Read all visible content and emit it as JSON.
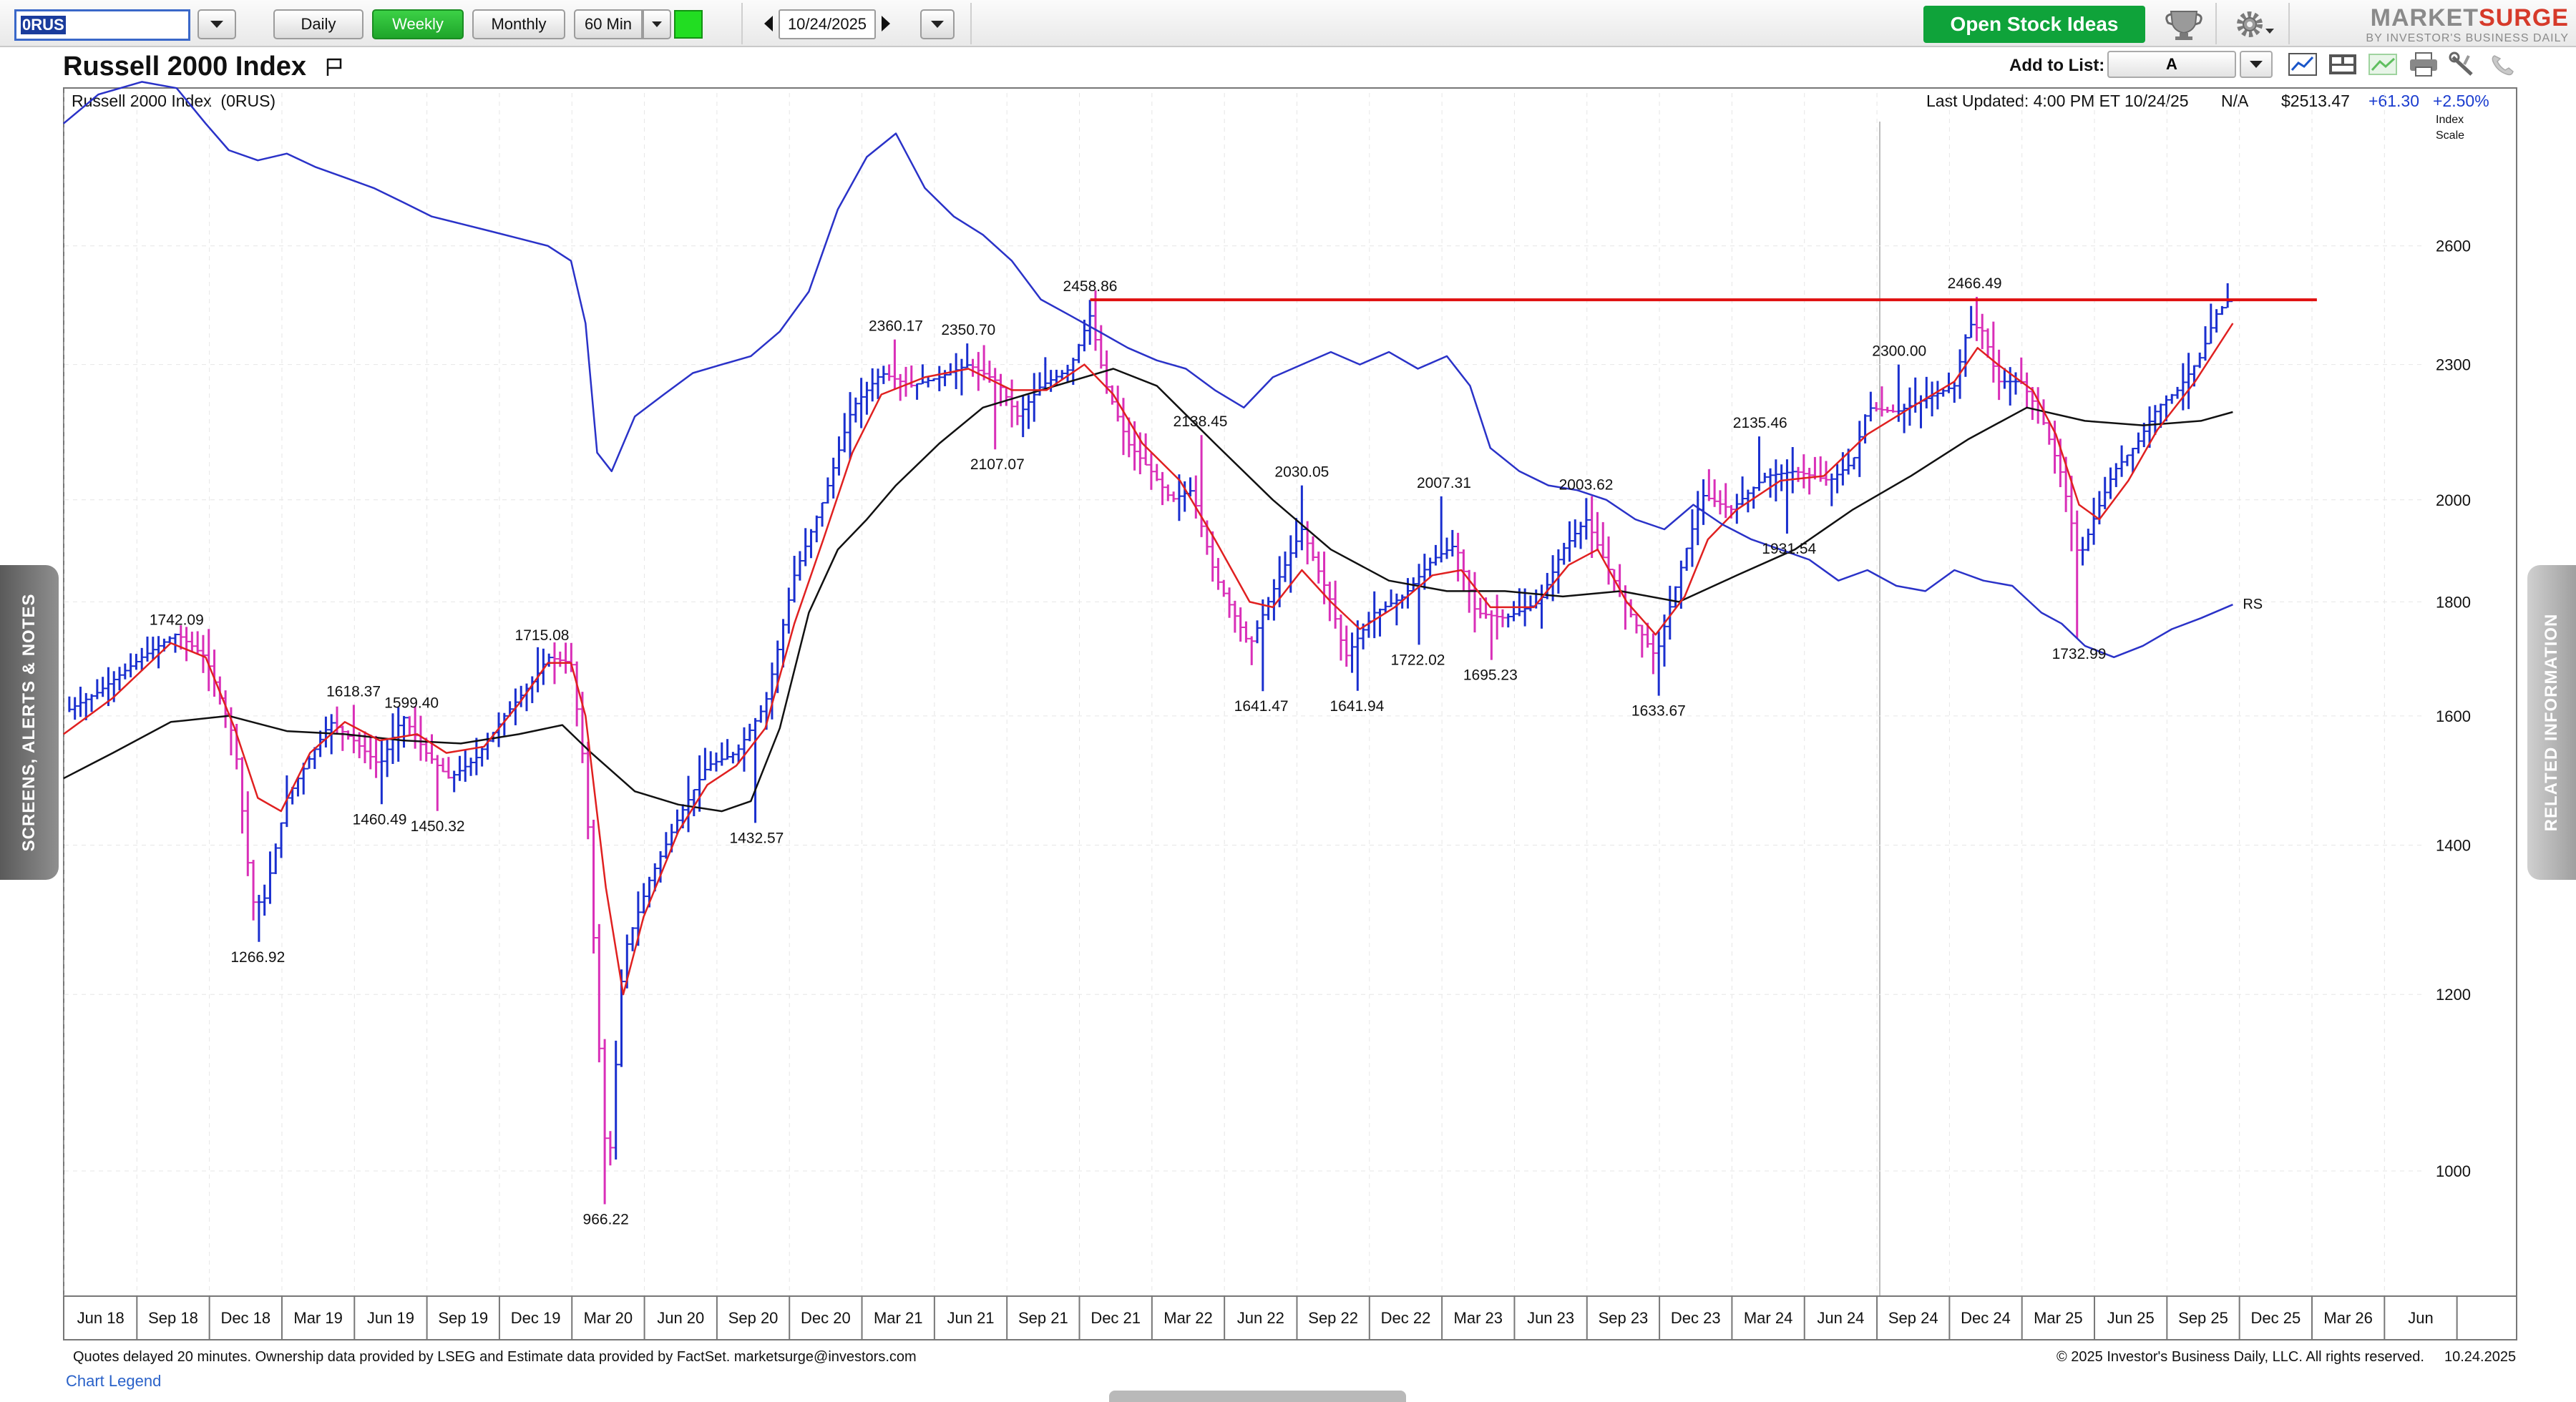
{
  "toolbar": {
    "symbol": "0RUS",
    "periods": [
      "Daily",
      "Weekly",
      "Monthly"
    ],
    "active_period": "Weekly",
    "interval": "60 Min",
    "date": "10/24/2025",
    "open_ideas": "Open Stock Ideas",
    "logo_market": "MARKET",
    "logo_surge": "SURGE",
    "logo_tag": "BY INVESTOR'S BUSINESS DAILY"
  },
  "header": {
    "title": "Russell 2000 Index",
    "add_to_list": "Add to List:",
    "list_value": "A"
  },
  "chart_info": {
    "name": "Russell 2000 Index",
    "symbol": "(0RUS)",
    "last_updated": "Last Updated: 4:00 PM ET 10/24/25",
    "na": "N/A",
    "price": "$2513.47",
    "change": "+61.30",
    "change_pct": "+2.50%",
    "scale_label_1": "Index",
    "scale_label_2": "Scale",
    "rs_label": "RS"
  },
  "side": {
    "left": "SCREENS, ALERTS & NOTES",
    "right": "RELATED INFORMATION"
  },
  "footer": {
    "disclaimer": "Quotes delayed 20 minutes. Ownership data provided by LSEG and Estimate data provided by FactSet. marketsurge@investors.com",
    "copyright": "© 2025 Investor's Business Daily, LLC. All rights reserved.",
    "date": "10.24.2025",
    "legend": "Chart Legend"
  },
  "colors": {
    "up_bar": "#1a2fcf",
    "down_bar": "#d92fb8",
    "ma_short": "#e02020",
    "ma_long": "#111111",
    "rs_line": "#2a32c8",
    "resistance": "#e01010",
    "accent_green": "#1ea52a"
  },
  "chart_data": {
    "type": "ohlc",
    "scale": "log",
    "ylim": [
      880,
      3000
    ],
    "y_ticks": [
      1000,
      1200,
      1400,
      1600,
      1800,
      2000,
      2300,
      2600
    ],
    "x_range": [
      2018.333,
      2026.5
    ],
    "x_ticks": [
      "Jun 18",
      "Sep 18",
      "Dec 18",
      "Mar 19",
      "Jun 19",
      "Sep 19",
      "Dec 19",
      "Mar 20",
      "Jun 20",
      "Sep 20",
      "Dec 20",
      "Mar 21",
      "Jun 21",
      "Sep 21",
      "Dec 21",
      "Mar 22",
      "Jun 22",
      "Sep 22",
      "Dec 22",
      "Mar 23",
      "Jun 23",
      "Sep 23",
      "Dec 23",
      "Mar 24",
      "Jun 24",
      "Sep 24",
      "Dec 24",
      "Mar 25",
      "Jun 25",
      "Sep 25",
      "Dec 25",
      "Mar 26",
      "Jun"
    ],
    "price_path": [
      [
        2018.33,
        1605
      ],
      [
        2018.45,
        1640
      ],
      [
        2018.6,
        1700
      ],
      [
        2018.72,
        1742
      ],
      [
        2018.82,
        1700
      ],
      [
        2018.92,
        1560
      ],
      [
        2018.98,
        1320
      ],
      [
        2019.02,
        1320
      ],
      [
        2019.1,
        1470
      ],
      [
        2019.25,
        1590
      ],
      [
        2019.33,
        1560
      ],
      [
        2019.42,
        1520
      ],
      [
        2019.5,
        1600
      ],
      [
        2019.58,
        1540
      ],
      [
        2019.66,
        1500
      ],
      [
        2019.75,
        1530
      ],
      [
        2019.85,
        1600
      ],
      [
        2019.95,
        1660
      ],
      [
        2020.0,
        1700
      ],
      [
        2020.08,
        1690
      ],
      [
        2020.13,
        1500
      ],
      [
        2020.19,
        1050
      ],
      [
        2020.21,
        1000
      ],
      [
        2020.26,
        1250
      ],
      [
        2020.35,
        1350
      ],
      [
        2020.45,
        1440
      ],
      [
        2020.55,
        1520
      ],
      [
        2020.65,
        1540
      ],
      [
        2020.75,
        1620
      ],
      [
        2020.85,
        1850
      ],
      [
        2020.95,
        2000
      ],
      [
        2021.05,
        2200
      ],
      [
        2021.15,
        2280
      ],
      [
        2021.25,
        2250
      ],
      [
        2021.35,
        2270
      ],
      [
        2021.45,
        2300
      ],
      [
        2021.55,
        2260
      ],
      [
        2021.62,
        2180
      ],
      [
        2021.7,
        2250
      ],
      [
        2021.8,
        2290
      ],
      [
        2021.87,
        2420
      ],
      [
        2021.92,
        2260
      ],
      [
        2022.0,
        2120
      ],
      [
        2022.08,
        2060
      ],
      [
        2022.15,
        2000
      ],
      [
        2022.22,
        2020
      ],
      [
        2022.3,
        1850
      ],
      [
        2022.42,
        1720
      ],
      [
        2022.5,
        1820
      ],
      [
        2022.6,
        1940
      ],
      [
        2022.7,
        1800
      ],
      [
        2022.75,
        1700
      ],
      [
        2022.85,
        1780
      ],
      [
        2022.95,
        1810
      ],
      [
        2023.05,
        1880
      ],
      [
        2023.13,
        1910
      ],
      [
        2023.2,
        1780
      ],
      [
        2023.3,
        1770
      ],
      [
        2023.42,
        1800
      ],
      [
        2023.5,
        1900
      ],
      [
        2023.58,
        1960
      ],
      [
        2023.65,
        1870
      ],
      [
        2023.75,
        1760
      ],
      [
        2023.82,
        1700
      ],
      [
        2023.9,
        1850
      ],
      [
        2023.98,
        2010
      ],
      [
        2024.08,
        1980
      ],
      [
        2024.2,
        2050
      ],
      [
        2024.3,
        2060
      ],
      [
        2024.42,
        2040
      ],
      [
        2024.5,
        2080
      ],
      [
        2024.55,
        2200
      ],
      [
        2024.65,
        2190
      ],
      [
        2024.75,
        2220
      ],
      [
        2024.85,
        2250
      ],
      [
        2024.9,
        2400
      ],
      [
        2024.95,
        2380
      ],
      [
        2025.0,
        2260
      ],
      [
        2025.08,
        2260
      ],
      [
        2025.15,
        2180
      ],
      [
        2025.22,
        2050
      ],
      [
        2025.28,
        1880
      ],
      [
        2025.33,
        1960
      ],
      [
        2025.4,
        2060
      ],
      [
        2025.48,
        2120
      ],
      [
        2025.55,
        2200
      ],
      [
        2025.62,
        2240
      ],
      [
        2025.7,
        2320
      ],
      [
        2025.75,
        2420
      ],
      [
        2025.81,
        2470
      ]
    ],
    "rs_path": [
      [
        2018.33,
        2950
      ],
      [
        2018.45,
        3040
      ],
      [
        2018.6,
        3080
      ],
      [
        2018.72,
        3060
      ],
      [
        2018.82,
        2950
      ],
      [
        2018.9,
        2870
      ],
      [
        2019.0,
        2840
      ],
      [
        2019.1,
        2860
      ],
      [
        2019.2,
        2820
      ],
      [
        2019.3,
        2790
      ],
      [
        2019.4,
        2760
      ],
      [
        2019.5,
        2720
      ],
      [
        2019.6,
        2680
      ],
      [
        2019.7,
        2660
      ],
      [
        2019.8,
        2640
      ],
      [
        2019.9,
        2620
      ],
      [
        2020.0,
        2600
      ],
      [
        2020.08,
        2560
      ],
      [
        2020.13,
        2400
      ],
      [
        2020.17,
        2100
      ],
      [
        2020.22,
        2060
      ],
      [
        2020.3,
        2180
      ],
      [
        2020.4,
        2230
      ],
      [
        2020.5,
        2280
      ],
      [
        2020.6,
        2300
      ],
      [
        2020.7,
        2320
      ],
      [
        2020.8,
        2380
      ],
      [
        2020.9,
        2480
      ],
      [
        2021.0,
        2700
      ],
      [
        2021.1,
        2850
      ],
      [
        2021.2,
        2920
      ],
      [
        2021.3,
        2760
      ],
      [
        2021.4,
        2680
      ],
      [
        2021.5,
        2630
      ],
      [
        2021.6,
        2560
      ],
      [
        2021.7,
        2460
      ],
      [
        2021.8,
        2420
      ],
      [
        2021.9,
        2380
      ],
      [
        2022.0,
        2340
      ],
      [
        2022.1,
        2310
      ],
      [
        2022.2,
        2290
      ],
      [
        2022.3,
        2240
      ],
      [
        2022.4,
        2200
      ],
      [
        2022.5,
        2270
      ],
      [
        2022.6,
        2300
      ],
      [
        2022.7,
        2330
      ],
      [
        2022.8,
        2300
      ],
      [
        2022.9,
        2330
      ],
      [
        2023.0,
        2290
      ],
      [
        2023.1,
        2320
      ],
      [
        2023.18,
        2250
      ],
      [
        2023.25,
        2110
      ],
      [
        2023.35,
        2060
      ],
      [
        2023.45,
        2030
      ],
      [
        2023.55,
        2020
      ],
      [
        2023.65,
        2000
      ],
      [
        2023.75,
        1960
      ],
      [
        2023.85,
        1940
      ],
      [
        2023.95,
        1990
      ],
      [
        2024.05,
        1950
      ],
      [
        2024.15,
        1920
      ],
      [
        2024.25,
        1900
      ],
      [
        2024.35,
        1880
      ],
      [
        2024.45,
        1840
      ],
      [
        2024.55,
        1860
      ],
      [
        2024.65,
        1830
      ],
      [
        2024.75,
        1820
      ],
      [
        2024.85,
        1860
      ],
      [
        2024.95,
        1840
      ],
      [
        2025.05,
        1830
      ],
      [
        2025.15,
        1780
      ],
      [
        2025.22,
        1760
      ],
      [
        2025.3,
        1720
      ],
      [
        2025.4,
        1700
      ],
      [
        2025.5,
        1720
      ],
      [
        2025.6,
        1750
      ],
      [
        2025.7,
        1770
      ],
      [
        2025.81,
        1795
      ]
    ],
    "ma_short_path": [
      [
        2018.33,
        1570
      ],
      [
        2018.5,
        1630
      ],
      [
        2018.7,
        1725
      ],
      [
        2018.82,
        1700
      ],
      [
        2018.92,
        1580
      ],
      [
        2019.0,
        1470
      ],
      [
        2019.08,
        1450
      ],
      [
        2019.18,
        1540
      ],
      [
        2019.3,
        1590
      ],
      [
        2019.42,
        1560
      ],
      [
        2019.55,
        1570
      ],
      [
        2019.65,
        1540
      ],
      [
        2019.78,
        1550
      ],
      [
        2019.9,
        1620
      ],
      [
        2020.0,
        1690
      ],
      [
        2020.08,
        1690
      ],
      [
        2020.13,
        1600
      ],
      [
        2020.2,
        1340
      ],
      [
        2020.26,
        1200
      ],
      [
        2020.33,
        1300
      ],
      [
        2020.45,
        1420
      ],
      [
        2020.55,
        1490
      ],
      [
        2020.65,
        1520
      ],
      [
        2020.75,
        1580
      ],
      [
        2020.85,
        1760
      ],
      [
        2020.95,
        1920
      ],
      [
        2021.05,
        2100
      ],
      [
        2021.15,
        2230
      ],
      [
        2021.3,
        2270
      ],
      [
        2021.45,
        2290
      ],
      [
        2021.6,
        2240
      ],
      [
        2021.72,
        2240
      ],
      [
        2021.85,
        2300
      ],
      [
        2021.95,
        2230
      ],
      [
        2022.05,
        2120
      ],
      [
        2022.18,
        2040
      ],
      [
        2022.3,
        1920
      ],
      [
        2022.42,
        1800
      ],
      [
        2022.5,
        1790
      ],
      [
        2022.6,
        1860
      ],
      [
        2022.7,
        1800
      ],
      [
        2022.8,
        1750
      ],
      [
        2022.92,
        1790
      ],
      [
        2023.05,
        1850
      ],
      [
        2023.15,
        1860
      ],
      [
        2023.25,
        1790
      ],
      [
        2023.4,
        1790
      ],
      [
        2023.52,
        1870
      ],
      [
        2023.62,
        1900
      ],
      [
        2023.72,
        1800
      ],
      [
        2023.82,
        1740
      ],
      [
        2023.92,
        1810
      ],
      [
        2024.0,
        1920
      ],
      [
        2024.1,
        1980
      ],
      [
        2024.25,
        2040
      ],
      [
        2024.4,
        2050
      ],
      [
        2024.55,
        2140
      ],
      [
        2024.7,
        2200
      ],
      [
        2024.85,
        2260
      ],
      [
        2024.93,
        2340
      ],
      [
        2025.0,
        2300
      ],
      [
        2025.12,
        2240
      ],
      [
        2025.2,
        2140
      ],
      [
        2025.28,
        1990
      ],
      [
        2025.35,
        1960
      ],
      [
        2025.45,
        2040
      ],
      [
        2025.55,
        2150
      ],
      [
        2025.68,
        2260
      ],
      [
        2025.81,
        2400
      ]
    ],
    "ma_long_path": [
      [
        2018.33,
        1500
      ],
      [
        2018.5,
        1540
      ],
      [
        2018.7,
        1590
      ],
      [
        2018.9,
        1600
      ],
      [
        2019.1,
        1575
      ],
      [
        2019.3,
        1570
      ],
      [
        2019.5,
        1560
      ],
      [
        2019.7,
        1555
      ],
      [
        2019.9,
        1570
      ],
      [
        2020.05,
        1585
      ],
      [
        2020.15,
        1540
      ],
      [
        2020.3,
        1480
      ],
      [
        2020.45,
        1460
      ],
      [
        2020.6,
        1450
      ],
      [
        2020.7,
        1465
      ],
      [
        2020.8,
        1580
      ],
      [
        2020.9,
        1780
      ],
      [
        2021.0,
        1900
      ],
      [
        2021.1,
        1960
      ],
      [
        2021.2,
        2030
      ],
      [
        2021.35,
        2120
      ],
      [
        2021.5,
        2200
      ],
      [
        2021.65,
        2230
      ],
      [
        2021.8,
        2260
      ],
      [
        2021.95,
        2290
      ],
      [
        2022.1,
        2250
      ],
      [
        2022.3,
        2120
      ],
      [
        2022.5,
        2000
      ],
      [
        2022.7,
        1900
      ],
      [
        2022.9,
        1840
      ],
      [
        2023.1,
        1820
      ],
      [
        2023.3,
        1820
      ],
      [
        2023.5,
        1810
      ],
      [
        2023.7,
        1820
      ],
      [
        2023.9,
        1800
      ],
      [
        2024.1,
        1850
      ],
      [
        2024.3,
        1900
      ],
      [
        2024.5,
        1980
      ],
      [
        2024.7,
        2050
      ],
      [
        2024.9,
        2130
      ],
      [
        2025.1,
        2200
      ],
      [
        2025.3,
        2170
      ],
      [
        2025.5,
        2160
      ],
      [
        2025.7,
        2170
      ],
      [
        2025.81,
        2190
      ]
    ],
    "resistance": {
      "x_start": 2021.87,
      "x_end": 2026.1,
      "y": 2459
    },
    "annotations": [
      {
        "x": 2018.72,
        "y": 1742.09,
        "label": "1742.09",
        "pos": "above"
      },
      {
        "x": 2019.0,
        "y": 1266.92,
        "label": "1266.92",
        "pos": "below"
      },
      {
        "x": 2019.33,
        "y": 1618.37,
        "label": "1618.37",
        "pos": "above"
      },
      {
        "x": 2019.42,
        "y": 1460.49,
        "label": "1460.49",
        "pos": "below"
      },
      {
        "x": 2019.53,
        "y": 1599.4,
        "label": "1599.40",
        "pos": "above"
      },
      {
        "x": 2019.62,
        "y": 1450.32,
        "label": "1450.32",
        "pos": "below"
      },
      {
        "x": 2019.98,
        "y": 1715.08,
        "label": "1715.08",
        "pos": "above"
      },
      {
        "x": 2020.2,
        "y": 966.22,
        "label": "966.22",
        "pos": "below"
      },
      {
        "x": 2020.72,
        "y": 1432.57,
        "label": "1432.57",
        "pos": "below"
      },
      {
        "x": 2021.2,
        "y": 2360.17,
        "label": "2360.17",
        "pos": "above"
      },
      {
        "x": 2021.45,
        "y": 2350.7,
        "label": "2350.70",
        "pos": "above"
      },
      {
        "x": 2021.55,
        "y": 2107.07,
        "label": "2107.07",
        "pos": "below"
      },
      {
        "x": 2021.87,
        "y": 2458.86,
        "label": "2458.86",
        "pos": "above"
      },
      {
        "x": 2022.25,
        "y": 2138.45,
        "label": "2138.45",
        "pos": "above"
      },
      {
        "x": 2022.46,
        "y": 1641.47,
        "label": "1641.47",
        "pos": "below"
      },
      {
        "x": 2022.6,
        "y": 2030.05,
        "label": "2030.05",
        "pos": "above"
      },
      {
        "x": 2022.79,
        "y": 1641.94,
        "label": "1641.94",
        "pos": "below"
      },
      {
        "x": 2023.0,
        "y": 1722.02,
        "label": "1722.02",
        "pos": "below"
      },
      {
        "x": 2023.09,
        "y": 2007.31,
        "label": "2007.31",
        "pos": "above"
      },
      {
        "x": 2023.25,
        "y": 1695.23,
        "label": "1695.23",
        "pos": "below"
      },
      {
        "x": 2023.58,
        "y": 2003.62,
        "label": "2003.62",
        "pos": "above"
      },
      {
        "x": 2023.83,
        "y": 1633.67,
        "label": "1633.67",
        "pos": "below"
      },
      {
        "x": 2024.18,
        "y": 2135.46,
        "label": "2135.46",
        "pos": "above"
      },
      {
        "x": 2024.28,
        "y": 1931.54,
        "label": "1931.54",
        "pos": "below"
      },
      {
        "x": 2024.66,
        "y": 2300.0,
        "label": "2300.00",
        "pos": "above"
      },
      {
        "x": 2024.92,
        "y": 2466.49,
        "label": "2466.49",
        "pos": "above"
      },
      {
        "x": 2025.28,
        "y": 1732.99,
        "label": "1732.99",
        "pos": "below"
      }
    ]
  }
}
